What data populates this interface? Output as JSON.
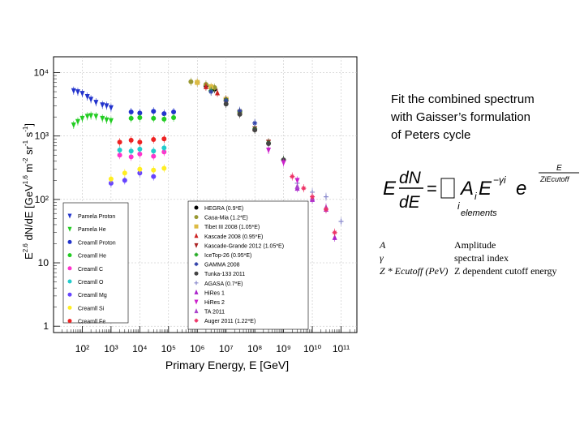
{
  "caption": {
    "line1": "Fit the combined spectrum",
    "line2": "with Gaisser’s formulation",
    "line3": "of Peters cycle"
  },
  "formula": {
    "lhs_num": "dN",
    "lhs_den": "dE",
    "lhs_e": "E",
    "sum_box": "☐",
    "sum_index": "i",
    "sum_sub": "elements",
    "amp": "A",
    "amp_sub": "i",
    "power_base": "E",
    "power_exp": "−γi",
    "exp_base": "e",
    "exp_num": "E",
    "exp_den": "ZiEcutoff"
  },
  "definitions": [
    {
      "symbol": "A",
      "text": "Amplitude"
    },
    {
      "symbol": "γ",
      "text": "spectral index"
    },
    {
      "symbol": "Z * Ecutoff (PeV)",
      "text": "Z dependent cutoff energy"
    }
  ],
  "chart_data": {
    "type": "scatter",
    "title": "",
    "xlabel": "Primary Energy, E [GeV]",
    "ylabel": "E2.6 dN/dE [GeV1.6 m-2 sr-1 s-1]",
    "xscale": "log",
    "yscale": "log",
    "xlim": [
      10,
      100000000000
    ],
    "ylim": [
      1,
      10000
    ],
    "x_tick_labels": [
      "10²",
      "10³",
      "10⁴",
      "10⁵",
      "10⁶",
      "10⁷",
      "10⁸",
      "10⁹",
      "10¹⁰",
      "10¹¹"
    ],
    "y_tick_labels": [
      "1",
      "10",
      "10²",
      "10³",
      "10⁴"
    ],
    "legend_left": [
      {
        "name": "Pamela Proton",
        "color": "#2233cc",
        "marker": "tri-down"
      },
      {
        "name": "Pamela He",
        "color": "#22cc22",
        "marker": "tri-down"
      },
      {
        "name": "Creamll Proton",
        "color": "#2233cc",
        "marker": "circle"
      },
      {
        "name": "Creamll He",
        "color": "#22cc22",
        "marker": "circle"
      },
      {
        "name": "Creamll C",
        "color": "#ff33cc",
        "marker": "circle"
      },
      {
        "name": "Creamll O",
        "color": "#22cccc",
        "marker": "circle"
      },
      {
        "name": "Creamll Mg",
        "color": "#6644ff",
        "marker": "circle"
      },
      {
        "name": "Creamll Si",
        "color": "#ffee22",
        "marker": "circle"
      },
      {
        "name": "Creamll Fe",
        "color": "#ee2222",
        "marker": "circle"
      }
    ],
    "legend_right": [
      {
        "name": "HEGRA (0.9*E)",
        "color": "#000000",
        "marker": "circle"
      },
      {
        "name": "Casa-Mia (1.2*E)",
        "color": "#999933",
        "marker": "circle"
      },
      {
        "name": "Tibet III 2008 (1.05*E)",
        "color": "#ddbb44",
        "marker": "square"
      },
      {
        "name": "Kascade 2008 (0.95*E)",
        "color": "#cc2222",
        "marker": "tri-up"
      },
      {
        "name": "Kascade-Grande 2012 (1.05*E)",
        "color": "#aa2222",
        "marker": "tri-down"
      },
      {
        "name": "IceTop-26 (0.95*E)",
        "color": "#22aa22",
        "marker": "star"
      },
      {
        "name": "GAMMA 2008",
        "color": "#3344aa",
        "marker": "star"
      },
      {
        "name": "Tunka-133 2011",
        "color": "#444444",
        "marker": "circle"
      },
      {
        "name": "AGASA (0.7*E)",
        "color": "#8888cc",
        "marker": "cross"
      },
      {
        "name": "HiRes 1",
        "color": "#aa22cc",
        "marker": "tri-up"
      },
      {
        "name": "HiRes 2",
        "color": "#cc22cc",
        "marker": "tri-down"
      },
      {
        "name": "TA 2011",
        "color": "#aa44cc",
        "marker": "tri-up"
      },
      {
        "name": "Auger 2011 (1.22*E)",
        "color": "#ee3366",
        "marker": "star"
      }
    ],
    "series": [
      {
        "name": "Pamela Proton",
        "color": "#2233cc",
        "x": [
          50,
          70,
          100,
          150,
          200,
          300,
          500,
          700,
          1000
        ],
        "y": [
          5200,
          5000,
          4700,
          4200,
          3800,
          3400,
          3100,
          3000,
          2800
        ]
      },
      {
        "name": "Pamela He",
        "color": "#22cc22",
        "x": [
          50,
          70,
          100,
          150,
          200,
          300,
          500,
          700,
          1000
        ],
        "y": [
          1500,
          1700,
          1900,
          2050,
          2100,
          2050,
          1900,
          1800,
          1750
        ]
      },
      {
        "name": "Creamll Proton",
        "color": "#2233cc",
        "x": [
          5000,
          10000,
          30000,
          70000,
          150000
        ],
        "y": [
          2400,
          2300,
          2450,
          2250,
          2400
        ]
      },
      {
        "name": "Creamll He",
        "color": "#22cc22",
        "x": [
          5000,
          10000,
          30000,
          70000,
          150000
        ],
        "y": [
          1900,
          1950,
          1900,
          1850,
          1950
        ]
      },
      {
        "name": "Creamll C",
        "color": "#ff33cc",
        "x": [
          2000,
          5000,
          10000,
          30000,
          70000
        ],
        "y": [
          500,
          470,
          520,
          480,
          560
        ]
      },
      {
        "name": "Creamll O",
        "color": "#22cccc",
        "x": [
          2000,
          5000,
          10000,
          30000,
          70000
        ],
        "y": [
          600,
          580,
          620,
          580,
          650
        ]
      },
      {
        "name": "Creamll Mg",
        "color": "#6644ff",
        "x": [
          1000,
          3000,
          10000,
          30000
        ],
        "y": [
          180,
          200,
          260,
          230
        ]
      },
      {
        "name": "Creamll Si",
        "color": "#ffee22",
        "x": [
          1000,
          3000,
          10000,
          30000,
          70000
        ],
        "y": [
          210,
          260,
          300,
          290,
          310
        ]
      },
      {
        "name": "Creamll Fe",
        "color": "#ee2222",
        "x": [
          2000,
          5000,
          10000,
          30000,
          70000
        ],
        "y": [
          800,
          860,
          800,
          880,
          900
        ]
      },
      {
        "name": "HEGRA (0.9*E)",
        "color": "#000000",
        "x": [
          1000000,
          2000000,
          4000000
        ],
        "y": [
          7000,
          6200,
          5500
        ]
      },
      {
        "name": "Casa-Mia (1.2*E)",
        "color": "#999933",
        "x": [
          600000,
          1000000,
          2000000,
          4000000
        ],
        "y": [
          7200,
          7000,
          6500,
          5800
        ]
      },
      {
        "name": "Tibet III 2008 (1.05*E)",
        "color": "#ddbb44",
        "x": [
          1000000,
          3000000,
          10000000,
          30000000
        ],
        "y": [
          7000,
          6000,
          3800,
          2400
        ]
      },
      {
        "name": "Kascade 2008 (0.95*E)",
        "color": "#cc2222",
        "x": [
          2000000,
          5000000,
          10000000,
          30000000,
          100000000
        ],
        "y": [
          6000,
          4800,
          3800,
          2400,
          1300
        ]
      },
      {
        "name": "Kascade-Grande 2012 (1.05*E)",
        "color": "#aa2222",
        "x": [
          10000000,
          30000000,
          100000000,
          300000000
        ],
        "y": [
          3600,
          2300,
          1300,
          800
        ]
      },
      {
        "name": "IceTop-26 (0.95*E)",
        "color": "#22aa22",
        "x": [
          3000000,
          10000000,
          30000000,
          100000000,
          300000000,
          1000000000
        ],
        "y": [
          5200,
          3700,
          2400,
          1300,
          780,
          420
        ]
      },
      {
        "name": "GAMMA 2008",
        "color": "#3344aa",
        "x": [
          3000000,
          10000000,
          30000000,
          100000000
        ],
        "y": [
          5000,
          3600,
          2500,
          1600
        ]
      },
      {
        "name": "Tunka-133 2011",
        "color": "#444444",
        "x": [
          10000000,
          30000000,
          100000000,
          300000000,
          1000000000
        ],
        "y": [
          3200,
          2200,
          1250,
          760,
          420
        ]
      },
      {
        "name": "AGASA (0.7*E)",
        "color": "#8888cc",
        "x": [
          3000000000,
          10000000000,
          30000000000,
          100000000000
        ],
        "y": [
          180,
          130,
          110,
          45
        ]
      },
      {
        "name": "HiRes 1",
        "color": "#aa22cc",
        "x": [
          3000000000,
          10000000000,
          30000000000,
          60000000000
        ],
        "y": [
          150,
          100,
          70,
          25
        ]
      },
      {
        "name": "HiRes 2",
        "color": "#cc22cc",
        "x": [
          300000000,
          1000000000,
          3000000000
        ],
        "y": [
          600,
          380,
          200
        ]
      },
      {
        "name": "TA 2011",
        "color": "#aa44cc",
        "x": [
          3000000000,
          10000000000,
          30000000000
        ],
        "y": [
          160,
          105,
          75
        ]
      },
      {
        "name": "Auger 2011 (1.22*E)",
        "color": "#ee3366",
        "x": [
          2000000000,
          5000000000,
          10000000000,
          30000000000,
          60000000000
        ],
        "y": [
          230,
          150,
          110,
          70,
          30
        ]
      }
    ]
  }
}
